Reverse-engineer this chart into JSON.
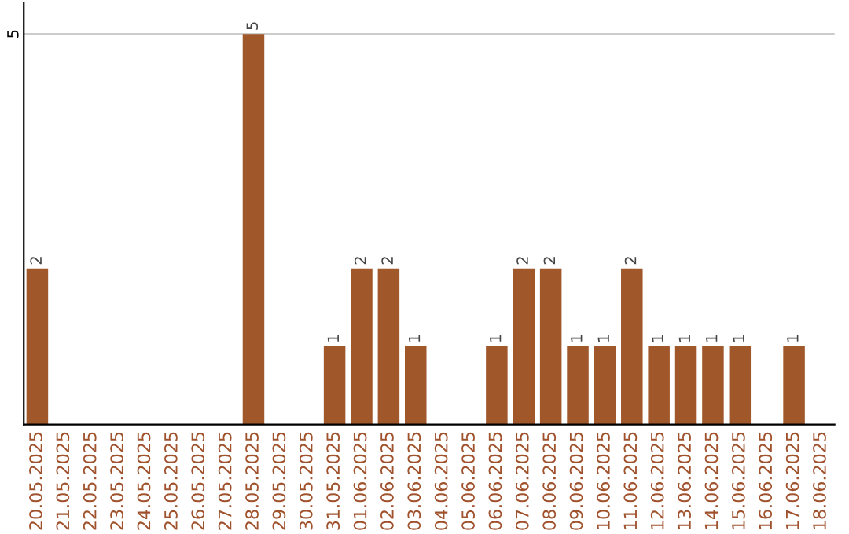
{
  "chart_data": {
    "type": "bar",
    "categories": [
      "20.05.2025",
      "21.05.2025",
      "22.05.2025",
      "23.05.2025",
      "24.05.2025",
      "25.05.2025",
      "26.05.2025",
      "27.05.2025",
      "28.05.2025",
      "29.05.2025",
      "30.05.2025",
      "31.05.2025",
      "01.06.2025",
      "02.06.2025",
      "03.06.2025",
      "04.06.2025",
      "05.06.2025",
      "06.06.2025",
      "07.06.2025",
      "08.06.2025",
      "09.06.2025",
      "10.06.2025",
      "11.06.2025",
      "12.06.2025",
      "13.06.2025",
      "14.06.2025",
      "15.06.2025",
      "16.06.2025",
      "17.06.2025",
      "18.06.2025"
    ],
    "values": [
      2,
      0,
      0,
      0,
      0,
      0,
      0,
      0,
      5,
      0,
      0,
      1,
      2,
      2,
      1,
      0,
      0,
      1,
      2,
      2,
      1,
      1,
      2,
      1,
      1,
      1,
      1,
      0,
      1,
      0
    ],
    "value_labels": [
      "2",
      null,
      null,
      null,
      null,
      null,
      null,
      null,
      "5",
      null,
      null,
      "1",
      "2",
      "2",
      "1",
      null,
      null,
      "1",
      "2",
      "2",
      "1",
      "1",
      "2",
      "1",
      "1",
      "1",
      "1",
      null,
      "1",
      null
    ],
    "color": "#a0572a",
    "ylim": [
      0,
      5.4
    ],
    "yticks": [
      5
    ],
    "grid": "y"
  }
}
